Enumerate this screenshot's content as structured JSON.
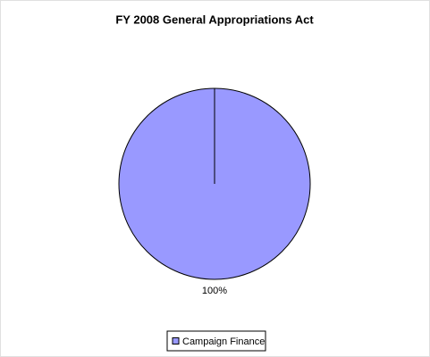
{
  "chart_data": {
    "type": "pie",
    "title": "FY 2008 General Appropriations Act",
    "categories": [
      "Campaign Finance"
    ],
    "values": [
      100
    ],
    "value_labels": [
      "100%"
    ],
    "colors": [
      "#9999ff"
    ],
    "legend": "bottom"
  }
}
